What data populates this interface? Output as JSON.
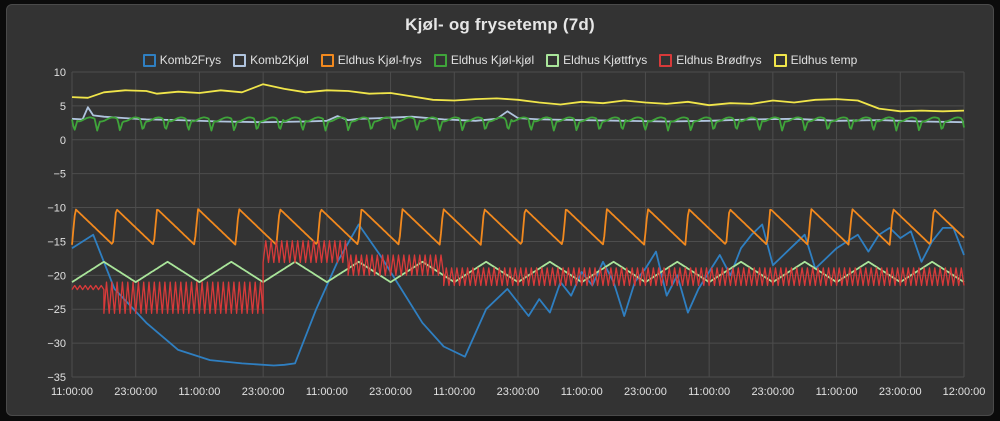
{
  "chart_data": {
    "type": "line",
    "title": "Kjøl- og frysetemp (7d)",
    "xlabel": "",
    "ylabel": "",
    "ylim": [
      -35,
      10
    ],
    "yticks": [
      10,
      5,
      0,
      -5,
      -10,
      -15,
      -20,
      -25,
      -30,
      -35
    ],
    "ytick_labels": [
      "10",
      "5",
      "0",
      "−5",
      "−10",
      "−15",
      "−20",
      "−25",
      "−30",
      "−35"
    ],
    "xlim": [
      0,
      168
    ],
    "xticks": [
      0,
      12,
      24,
      36,
      48,
      60,
      72,
      84,
      96,
      108,
      120,
      132,
      144,
      156,
      168
    ],
    "xtick_labels": [
      "11:00:00",
      "23:00:00",
      "11:00:00",
      "23:00:00",
      "11:00:00",
      "23:00:00",
      "11:00:00",
      "23:00:00",
      "11:00:00",
      "23:00:00",
      "11:00:00",
      "23:00:00",
      "11:00:00",
      "23:00:00",
      "12:00:00"
    ],
    "grid": true,
    "legend_position": "top-center",
    "series": [
      {
        "name": "Komb2Frys",
        "color": "#2f7fc1",
        "x": [
          0,
          4,
          8,
          14,
          20,
          26,
          32,
          38,
          40,
          42,
          46,
          50,
          54,
          58,
          62,
          66,
          70,
          74,
          78,
          82,
          86,
          88,
          90,
          92,
          94,
          96,
          98,
          100,
          102,
          104,
          106,
          108,
          110,
          112,
          114,
          116,
          118,
          120,
          122,
          124,
          126,
          128,
          130,
          132,
          134,
          136,
          138,
          140,
          142,
          144,
          146,
          148,
          150,
          152,
          154,
          156,
          158,
          160,
          162,
          164,
          166,
          168
        ],
        "values": [
          -16,
          -14,
          -22,
          -27,
          -31,
          -32.5,
          -33,
          -33.3,
          -33.2,
          -33,
          -25,
          -18,
          -12.5,
          -17,
          -22,
          -27,
          -30.5,
          -32,
          -25,
          -22,
          -26,
          -23.5,
          -25.5,
          -21,
          -23,
          -19.5,
          -21.5,
          -18,
          -21,
          -26,
          -21,
          -19,
          -16.5,
          -23,
          -20,
          -25.5,
          -22,
          -19.5,
          -17,
          -20,
          -16,
          -14,
          -12.5,
          -18.5,
          -17,
          -15.5,
          -14,
          -19,
          -17.5,
          -16,
          -15,
          -14,
          -16.5,
          -14,
          -13,
          -14.5,
          -13.5,
          -18,
          -15,
          -13,
          -13,
          -17
        ]
      },
      {
        "name": "Komb2Kjøl",
        "color": "#b0c4de",
        "x": [
          0,
          2,
          3,
          4,
          6,
          10,
          14,
          20,
          28,
          36,
          44,
          48,
          50,
          52,
          54,
          58,
          64,
          70,
          76,
          80,
          82,
          84,
          88,
          96,
          104,
          112,
          120,
          128,
          136,
          144,
          152,
          160,
          168
        ],
        "values": [
          3.1,
          3.0,
          4.8,
          3.6,
          3.4,
          3.2,
          3.0,
          2.9,
          2.7,
          2.6,
          2.7,
          2.8,
          3.5,
          2.9,
          3.1,
          3.2,
          3.4,
          3.0,
          2.8,
          3.1,
          4.2,
          3.2,
          3.0,
          2.9,
          2.8,
          2.7,
          2.8,
          3.0,
          3.1,
          2.8,
          2.9,
          2.7,
          2.6
        ]
      },
      {
        "name": "Eldhus Kjøl-frys",
        "color": "#f2891e",
        "phase": 0,
        "period": 7.7,
        "low": -15.5,
        "high": -10.2,
        "note": "sawtooth: sharp rise to high, slow decay to low"
      },
      {
        "name": "Eldhus Kjøl-kjøl",
        "color": "#3fa43a",
        "phase": 0,
        "period": 4.3,
        "low": 1.3,
        "high": 3.0,
        "note": "periodic dips around 1.5 °C"
      },
      {
        "name": "Eldhus Kjøttfrys",
        "color": "#a9e59a",
        "phase": 0,
        "period": 12,
        "low": -21,
        "high": -18,
        "note": "triangle wave between −21 and −18"
      },
      {
        "name": "Eldhus Brødfrys",
        "color": "#d83a3a",
        "segments": [
          {
            "from": 0,
            "to": 6,
            "center": -21.8,
            "amp": 0.3
          },
          {
            "from": 6,
            "to": 36,
            "center": -23.3,
            "amp": 2.3
          },
          {
            "from": 36,
            "to": 52,
            "center": -16.5,
            "amp": 1.6
          },
          {
            "from": 52,
            "to": 70,
            "center": -18.5,
            "amp": 1.5
          },
          {
            "from": 70,
            "to": 168,
            "center": -20.2,
            "amp": 1.3
          }
        ]
      },
      {
        "name": "Eldhus temp",
        "color": "#f0e54a",
        "x": [
          0,
          3,
          6,
          10,
          14,
          16,
          20,
          24,
          28,
          32,
          36,
          40,
          44,
          48,
          52,
          56,
          60,
          64,
          68,
          72,
          76,
          80,
          84,
          88,
          92,
          96,
          100,
          104,
          108,
          112,
          116,
          120,
          124,
          128,
          132,
          136,
          140,
          144,
          148,
          152,
          156,
          160,
          164,
          168
        ],
        "values": [
          6.3,
          6.2,
          7.0,
          7.3,
          7.2,
          6.8,
          7.1,
          6.9,
          7.3,
          7.0,
          8.2,
          7.5,
          7.0,
          7.3,
          7.2,
          6.8,
          6.9,
          6.4,
          5.9,
          5.8,
          6.0,
          6.1,
          5.9,
          5.5,
          5.2,
          5.6,
          5.4,
          5.8,
          5.5,
          5.3,
          5.6,
          5.1,
          5.4,
          5.3,
          5.8,
          5.5,
          5.9,
          6.0,
          5.8,
          4.6,
          4.2,
          4.3,
          4.2,
          4.3
        ]
      }
    ]
  }
}
